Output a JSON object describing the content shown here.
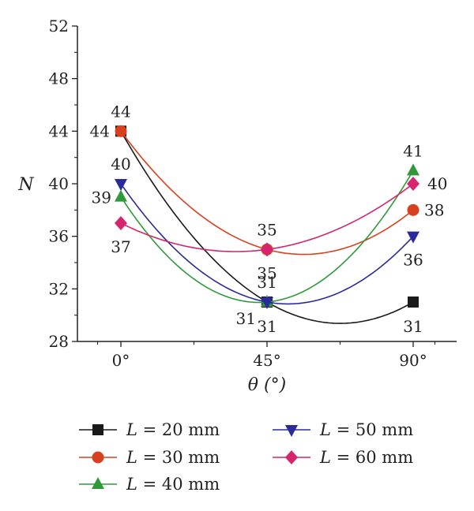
{
  "chart_data": {
    "type": "line",
    "xlabel": "θ (°)",
    "ylabel": "N",
    "categories": [
      "0°",
      "45°",
      "90°"
    ],
    "y_ticks": [
      "28",
      "32",
      "36",
      "40",
      "44",
      "48",
      "52"
    ],
    "ylim": [
      28,
      52
    ],
    "grid": false,
    "legend_position": "bottom",
    "series": [
      {
        "name": "L = 20 mm",
        "legend_var": "L",
        "legend_rest": " = 20 mm",
        "values": [
          44,
          31,
          31
        ],
        "color": "#1a1a1a",
        "marker": "square",
        "labels": [
          "44",
          "31",
          "31"
        ]
      },
      {
        "name": "L = 30 mm",
        "legend_var": "L",
        "legend_rest": " = 30 mm",
        "values": [
          44,
          35,
          38
        ],
        "color": "#d9411e",
        "marker": "circle",
        "labels": [
          "44",
          "35",
          "38"
        ]
      },
      {
        "name": "L = 40 mm",
        "legend_var": "L",
        "legend_rest": " = 40 mm",
        "values": [
          39,
          31,
          41
        ],
        "color": "#2e9a3a",
        "marker": "triangle-up",
        "labels": [
          "39",
          "31",
          "41"
        ]
      },
      {
        "name": "L = 50 mm",
        "legend_var": "L",
        "legend_rest": " = 50 mm",
        "values": [
          40,
          31,
          36
        ],
        "color": "#2a2a9a",
        "marker": "triangle-down",
        "labels": [
          "40",
          "31",
          "36"
        ]
      },
      {
        "name": "L = 60 mm",
        "legend_var": "L",
        "legend_rest": " = 60 mm",
        "values": [
          37,
          35,
          40
        ],
        "color": "#d6246e",
        "marker": "diamond",
        "labels": [
          "37",
          "35",
          "40"
        ]
      }
    ]
  }
}
